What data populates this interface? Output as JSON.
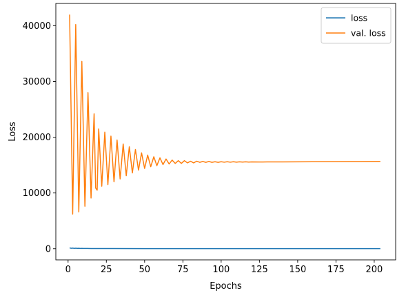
{
  "chart_data": {
    "type": "line",
    "xlabel": "Epochs",
    "ylabel": "Loss",
    "xlim": [
      -8,
      214
    ],
    "ylim": [
      -2000,
      44000
    ],
    "x_ticks": [
      0,
      25,
      50,
      75,
      100,
      125,
      150,
      175,
      200
    ],
    "y_ticks": [
      0,
      10000,
      20000,
      30000,
      40000
    ],
    "legend_position": "top-right",
    "series": [
      {
        "name": "loss",
        "color": "#1f77b4",
        "x": [
          1,
          2,
          3,
          4,
          5,
          6,
          7,
          8,
          9,
          10,
          12,
          15,
          20,
          30,
          50,
          100,
          150,
          204
        ],
        "values": [
          150,
          80,
          110,
          70,
          90,
          60,
          80,
          55,
          65,
          50,
          45,
          40,
          35,
          30,
          25,
          25,
          25,
          25
        ]
      },
      {
        "name": "val. loss",
        "color": "#ff7f0e",
        "x": [
          1,
          3,
          5,
          7,
          9,
          11,
          13,
          15,
          17,
          18,
          19,
          20,
          22,
          24,
          26,
          28,
          30,
          32,
          34,
          36,
          38,
          40,
          42,
          44,
          46,
          48,
          50,
          52,
          54,
          56,
          58,
          60,
          62,
          64,
          66,
          68,
          70,
          72,
          74,
          76,
          78,
          80,
          82,
          84,
          86,
          88,
          90,
          92,
          94,
          96,
          98,
          100,
          102,
          104,
          106,
          108,
          110,
          112,
          114,
          116,
          118,
          120,
          125,
          130,
          140,
          150,
          160,
          175,
          190,
          204
        ],
        "values": [
          42000,
          6200,
          40200,
          6600,
          33600,
          7600,
          28000,
          9100,
          24200,
          10900,
          10500,
          21500,
          11200,
          20900,
          11500,
          20200,
          12000,
          19500,
          12500,
          18800,
          13100,
          18300,
          13600,
          17800,
          14100,
          17200,
          14400,
          16800,
          14700,
          16500,
          14900,
          16300,
          15100,
          16100,
          15200,
          15900,
          15300,
          15800,
          15300,
          15800,
          15400,
          15700,
          15400,
          15700,
          15500,
          15650,
          15500,
          15650,
          15500,
          15600,
          15500,
          15600,
          15520,
          15600,
          15520,
          15600,
          15530,
          15590,
          15540,
          15590,
          15540,
          15580,
          15560,
          15570,
          15580,
          15590,
          15600,
          15620,
          15640,
          15660
        ]
      }
    ]
  }
}
